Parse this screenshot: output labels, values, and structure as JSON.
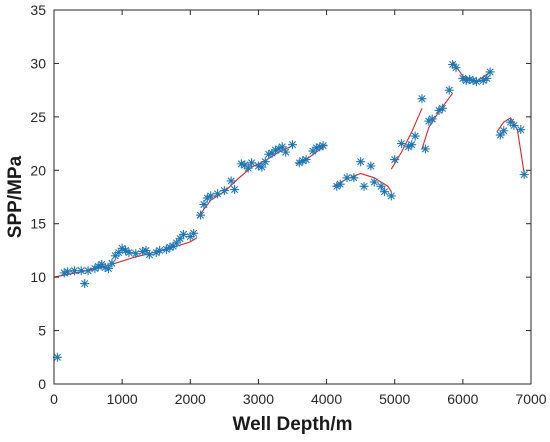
{
  "chart_data": {
    "type": "scatter",
    "title": "",
    "xlabel": "Well Depth/m",
    "ylabel": "SPP/MPa",
    "xlim": [
      0,
      7000
    ],
    "ylim": [
      0,
      35
    ],
    "xticks": [
      0,
      1000,
      2000,
      3000,
      4000,
      5000,
      6000,
      7000
    ],
    "yticks": [
      0,
      5,
      10,
      15,
      20,
      25,
      30,
      35
    ],
    "grid": false,
    "legend": "none",
    "colors": {
      "marker": "#1f77b4",
      "fit": "#d62728",
      "axis": "#262626"
    },
    "series": [
      {
        "type": "scatter",
        "marker": "asterisk",
        "points": [
          [
            50,
            2.5
          ],
          [
            150,
            10.4
          ],
          [
            200,
            10.5
          ],
          [
            300,
            10.6
          ],
          [
            400,
            10.6
          ],
          [
            450,
            9.4
          ],
          [
            500,
            10.6
          ],
          [
            600,
            10.8
          ],
          [
            650,
            11.0
          ],
          [
            700,
            11.2
          ],
          [
            750,
            10.9
          ],
          [
            800,
            10.8
          ],
          [
            850,
            11.3
          ],
          [
            900,
            12.0
          ],
          [
            950,
            12.3
          ],
          [
            1000,
            12.7
          ],
          [
            1050,
            12.5
          ],
          [
            1100,
            12.3
          ],
          [
            1200,
            12.2
          ],
          [
            1300,
            12.4
          ],
          [
            1350,
            12.5
          ],
          [
            1400,
            12.1
          ],
          [
            1500,
            12.3
          ],
          [
            1550,
            12.5
          ],
          [
            1650,
            12.6
          ],
          [
            1700,
            12.8
          ],
          [
            1750,
            12.9
          ],
          [
            1800,
            13.2
          ],
          [
            1850,
            13.6
          ],
          [
            1900,
            14.0
          ],
          [
            2000,
            13.8
          ],
          [
            2050,
            14.1
          ],
          [
            2150,
            15.8
          ],
          [
            2200,
            16.8
          ],
          [
            2250,
            17.4
          ],
          [
            2300,
            17.6
          ],
          [
            2400,
            17.8
          ],
          [
            2500,
            18.1
          ],
          [
            2600,
            19.0
          ],
          [
            2650,
            18.2
          ],
          [
            2750,
            20.6
          ],
          [
            2800,
            20.5
          ],
          [
            2850,
            20.2
          ],
          [
            2900,
            20.7
          ],
          [
            3000,
            20.4
          ],
          [
            3050,
            20.3
          ],
          [
            3100,
            20.8
          ],
          [
            3150,
            21.5
          ],
          [
            3200,
            21.6
          ],
          [
            3250,
            21.9
          ],
          [
            3300,
            22.0
          ],
          [
            3350,
            22.2
          ],
          [
            3400,
            21.7
          ],
          [
            3500,
            22.4
          ],
          [
            3600,
            20.7
          ],
          [
            3650,
            20.9
          ],
          [
            3700,
            21.0
          ],
          [
            3800,
            21.8
          ],
          [
            3850,
            22.1
          ],
          [
            3900,
            22.2
          ],
          [
            3950,
            22.3
          ],
          [
            4150,
            18.5
          ],
          [
            4200,
            18.7
          ],
          [
            4300,
            19.3
          ],
          [
            4400,
            19.3
          ],
          [
            4500,
            20.8
          ],
          [
            4550,
            18.5
          ],
          [
            4650,
            20.4
          ],
          [
            4700,
            18.9
          ],
          [
            4800,
            18.5
          ],
          [
            4850,
            18.0
          ],
          [
            4950,
            17.6
          ],
          [
            5000,
            21.0
          ],
          [
            5100,
            22.5
          ],
          [
            5200,
            22.2
          ],
          [
            5250,
            22.4
          ],
          [
            5300,
            23.2
          ],
          [
            5400,
            26.7
          ],
          [
            5450,
            22.0
          ],
          [
            5500,
            24.6
          ],
          [
            5550,
            24.8
          ],
          [
            5650,
            25.6
          ],
          [
            5700,
            25.8
          ],
          [
            5800,
            27.5
          ],
          [
            5850,
            29.9
          ],
          [
            5900,
            29.6
          ],
          [
            6000,
            28.6
          ],
          [
            6050,
            28.4
          ],
          [
            6100,
            28.5
          ],
          [
            6150,
            28.4
          ],
          [
            6200,
            28.3
          ],
          [
            6300,
            28.4
          ],
          [
            6350,
            28.6
          ],
          [
            6400,
            29.2
          ],
          [
            6550,
            23.3
          ],
          [
            6600,
            23.7
          ],
          [
            6700,
            24.5
          ],
          [
            6750,
            24.2
          ],
          [
            6850,
            23.8
          ],
          [
            6900,
            19.6
          ]
        ]
      },
      {
        "type": "line",
        "color": "#d62728",
        "segments": [
          [
            [
              0,
              10.0
            ],
            [
              400,
              10.5
            ],
            [
              800,
              11.1
            ],
            [
              1200,
              11.9
            ],
            [
              1600,
              12.5
            ],
            [
              2000,
              13.3
            ],
            [
              2100,
              13.7
            ]
          ],
          [
            [
              2100,
              15.5
            ],
            [
              2300,
              17.2
            ],
            [
              2500,
              18.0
            ],
            [
              2700,
              19.2
            ],
            [
              2900,
              20.3
            ],
            [
              3100,
              20.9
            ],
            [
              3300,
              21.7
            ],
            [
              3500,
              22.3
            ]
          ],
          [
            [
              3550,
              20.6
            ],
            [
              3700,
              21.0
            ],
            [
              3850,
              21.7
            ],
            [
              4000,
              22.4
            ]
          ],
          [
            [
              4100,
              18.5
            ],
            [
              4300,
              19.2
            ],
            [
              4500,
              19.7
            ],
            [
              4700,
              19.3
            ],
            [
              4900,
              18.5
            ],
            [
              4950,
              18.0
            ]
          ],
          [
            [
              4950,
              20.1
            ],
            [
              5100,
              21.7
            ],
            [
              5250,
              23.6
            ],
            [
              5400,
              25.8
            ]
          ],
          [
            [
              5400,
              22.0
            ],
            [
              5500,
              24.0
            ],
            [
              5650,
              25.5
            ],
            [
              5850,
              27.2
            ]
          ],
          [
            [
              5850,
              30.2
            ],
            [
              6000,
              28.8
            ],
            [
              6200,
              28.3
            ],
            [
              6400,
              29.2
            ]
          ],
          [
            [
              6500,
              23.6
            ],
            [
              6600,
              24.5
            ],
            [
              6700,
              24.9
            ],
            [
              6800,
              23.8
            ],
            [
              6900,
              19.7
            ]
          ]
        ]
      }
    ]
  }
}
